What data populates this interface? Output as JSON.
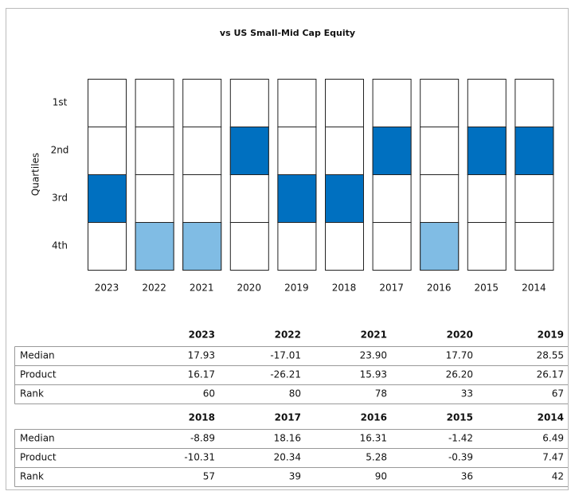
{
  "chart_data": {
    "type": "quartile",
    "title": "vs US Small-Mid Cap Equity",
    "y_label": "Quartiles",
    "quartile_labels": [
      "1st",
      "2nd",
      "3rd",
      "4th"
    ],
    "categories": [
      "2023",
      "2022",
      "2021",
      "2020",
      "2019",
      "2018",
      "2017",
      "2016",
      "2015",
      "2014"
    ],
    "values": [
      3,
      4,
      4,
      2,
      3,
      3,
      2,
      4,
      2,
      2
    ],
    "colors": [
      "#0070c0",
      "#80bce4",
      "#80bce4",
      "#0070c0",
      "#0070c0",
      "#0070c0",
      "#0070c0",
      "#80bce4",
      "#0070c0",
      "#0070c0"
    ]
  },
  "table": {
    "blocks": [
      {
        "header": [
          "2023",
          "2022",
          "2021",
          "2020",
          "2019"
        ],
        "rows": [
          {
            "label": "Median",
            "cells": [
              "17.93",
              "-17.01",
              "23.90",
              "17.70",
              "28.55"
            ]
          },
          {
            "label": "Product",
            "cells": [
              "16.17",
              "-26.21",
              "15.93",
              "26.20",
              "26.17"
            ]
          },
          {
            "label": "Rank",
            "cells": [
              "60",
              "80",
              "78",
              "33",
              "67"
            ]
          }
        ]
      },
      {
        "header": [
          "2018",
          "2017",
          "2016",
          "2015",
          "2014"
        ],
        "rows": [
          {
            "label": "Median",
            "cells": [
              "-8.89",
              "18.16",
              "16.31",
              "-1.42",
              "6.49"
            ]
          },
          {
            "label": "Product",
            "cells": [
              "-10.31",
              "20.34",
              "5.28",
              "-0.39",
              "7.47"
            ]
          },
          {
            "label": "Rank",
            "cells": [
              "57",
              "39",
              "90",
              "36",
              "42"
            ]
          }
        ]
      }
    ]
  }
}
